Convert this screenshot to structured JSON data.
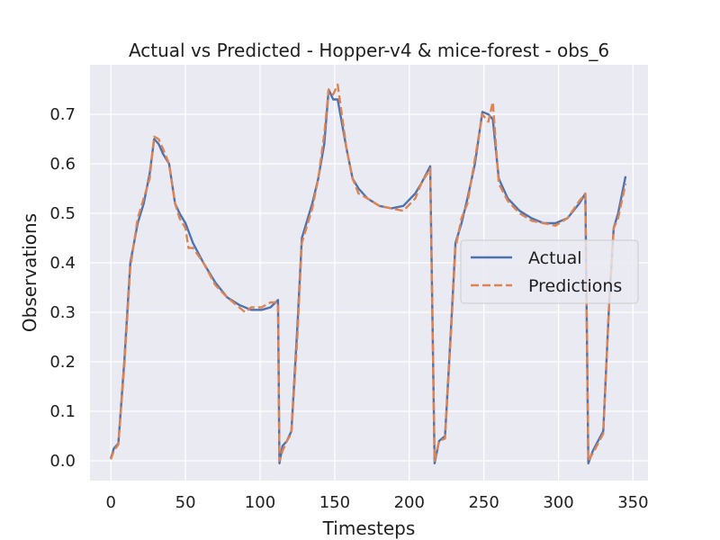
{
  "chart_data": {
    "type": "line",
    "title": "Actual vs Predicted - Hopper-v4 & mice-forest - obs_6",
    "xlabel": "Timesteps",
    "ylabel": "Observations",
    "xlim": [
      -14,
      360
    ],
    "ylim": [
      -0.04,
      0.8
    ],
    "x_ticks": [
      0,
      50,
      100,
      150,
      200,
      250,
      300,
      350
    ],
    "y_ticks": [
      0.0,
      0.1,
      0.2,
      0.3,
      0.4,
      0.5,
      0.6,
      0.7
    ],
    "y_tick_labels": [
      "0.0",
      "0.1",
      "0.2",
      "0.3",
      "0.4",
      "0.5",
      "0.6",
      "0.7"
    ],
    "grid": true,
    "legend_position": "center-right",
    "colors": {
      "Actual": "#4c72b0",
      "Predictions": "#dd8452",
      "background": "#eaeaf2",
      "grid": "#ffffff"
    },
    "series": [
      {
        "name": "Actual",
        "style": "solid",
        "points": [
          [
            0,
            0.005
          ],
          [
            2,
            0.025
          ],
          [
            5,
            0.035
          ],
          [
            9,
            0.2
          ],
          [
            13,
            0.4
          ],
          [
            18,
            0.48
          ],
          [
            22,
            0.52
          ],
          [
            26,
            0.58
          ],
          [
            29,
            0.65
          ],
          [
            32,
            0.64
          ],
          [
            35,
            0.62
          ],
          [
            39,
            0.6
          ],
          [
            43,
            0.52
          ],
          [
            46,
            0.5
          ],
          [
            50,
            0.48
          ],
          [
            55,
            0.44
          ],
          [
            62,
            0.4
          ],
          [
            70,
            0.36
          ],
          [
            78,
            0.33
          ],
          [
            86,
            0.315
          ],
          [
            94,
            0.305
          ],
          [
            101,
            0.305
          ],
          [
            107,
            0.31
          ],
          [
            112,
            0.325
          ],
          [
            113,
            -0.005
          ],
          [
            115,
            0.03
          ],
          [
            118,
            0.04
          ],
          [
            121,
            0.06
          ],
          [
            125,
            0.27
          ],
          [
            128,
            0.45
          ],
          [
            131,
            0.48
          ],
          [
            135,
            0.52
          ],
          [
            139,
            0.57
          ],
          [
            143,
            0.64
          ],
          [
            146,
            0.75
          ],
          [
            149,
            0.73
          ],
          [
            152,
            0.73
          ],
          [
            158,
            0.63
          ],
          [
            162,
            0.57
          ],
          [
            166,
            0.55
          ],
          [
            172,
            0.53
          ],
          [
            180,
            0.515
          ],
          [
            188,
            0.51
          ],
          [
            196,
            0.515
          ],
          [
            204,
            0.54
          ],
          [
            208,
            0.56
          ],
          [
            214,
            0.595
          ],
          [
            217,
            -0.005
          ],
          [
            220,
            0.04
          ],
          [
            224,
            0.05
          ],
          [
            228,
            0.27
          ],
          [
            231,
            0.44
          ],
          [
            235,
            0.48
          ],
          [
            239,
            0.53
          ],
          [
            244,
            0.6
          ],
          [
            249,
            0.705
          ],
          [
            253,
            0.7
          ],
          [
            256,
            0.69
          ],
          [
            260,
            0.57
          ],
          [
            266,
            0.53
          ],
          [
            274,
            0.505
          ],
          [
            282,
            0.49
          ],
          [
            290,
            0.48
          ],
          [
            298,
            0.48
          ],
          [
            306,
            0.49
          ],
          [
            314,
            0.52
          ],
          [
            318,
            0.54
          ],
          [
            320,
            -0.005
          ],
          [
            323,
            0.02
          ],
          [
            330,
            0.06
          ],
          [
            334,
            0.32
          ],
          [
            337,
            0.47
          ],
          [
            340,
            0.5
          ],
          [
            345,
            0.575
          ]
        ]
      },
      {
        "name": "Predictions",
        "style": "dashed",
        "points": [
          [
            0,
            0.003
          ],
          [
            2,
            0.02
          ],
          [
            5,
            0.033
          ],
          [
            9,
            0.19
          ],
          [
            13,
            0.39
          ],
          [
            18,
            0.49
          ],
          [
            22,
            0.53
          ],
          [
            26,
            0.57
          ],
          [
            29,
            0.655
          ],
          [
            32,
            0.65
          ],
          [
            35,
            0.63
          ],
          [
            39,
            0.6
          ],
          [
            43,
            0.52
          ],
          [
            46,
            0.49
          ],
          [
            50,
            0.47
          ],
          [
            52,
            0.43
          ],
          [
            55,
            0.43
          ],
          [
            62,
            0.4
          ],
          [
            70,
            0.355
          ],
          [
            78,
            0.33
          ],
          [
            86,
            0.31
          ],
          [
            90,
            0.3
          ],
          [
            94,
            0.31
          ],
          [
            101,
            0.31
          ],
          [
            107,
            0.32
          ],
          [
            112,
            0.32
          ],
          [
            113,
            0.0
          ],
          [
            115,
            0.02
          ],
          [
            118,
            0.04
          ],
          [
            121,
            0.055
          ],
          [
            125,
            0.25
          ],
          [
            128,
            0.44
          ],
          [
            131,
            0.47
          ],
          [
            135,
            0.51
          ],
          [
            139,
            0.57
          ],
          [
            143,
            0.66
          ],
          [
            146,
            0.75
          ],
          [
            149,
            0.74
          ],
          [
            152,
            0.76
          ],
          [
            158,
            0.63
          ],
          [
            162,
            0.57
          ],
          [
            166,
            0.54
          ],
          [
            172,
            0.53
          ],
          [
            180,
            0.515
          ],
          [
            188,
            0.51
          ],
          [
            196,
            0.505
          ],
          [
            204,
            0.53
          ],
          [
            208,
            0.56
          ],
          [
            214,
            0.59
          ],
          [
            217,
            0.0
          ],
          [
            220,
            0.04
          ],
          [
            224,
            0.045
          ],
          [
            228,
            0.26
          ],
          [
            231,
            0.43
          ],
          [
            235,
            0.49
          ],
          [
            239,
            0.52
          ],
          [
            244,
            0.61
          ],
          [
            249,
            0.7
          ],
          [
            253,
            0.685
          ],
          [
            256,
            0.725
          ],
          [
            260,
            0.56
          ],
          [
            266,
            0.525
          ],
          [
            274,
            0.5
          ],
          [
            282,
            0.485
          ],
          [
            290,
            0.48
          ],
          [
            298,
            0.475
          ],
          [
            306,
            0.49
          ],
          [
            314,
            0.525
          ],
          [
            318,
            0.54
          ],
          [
            320,
            0.0
          ],
          [
            323,
            0.015
          ],
          [
            330,
            0.055
          ],
          [
            334,
            0.32
          ],
          [
            337,
            0.47
          ],
          [
            340,
            0.49
          ],
          [
            345,
            0.56
          ]
        ]
      }
    ]
  }
}
